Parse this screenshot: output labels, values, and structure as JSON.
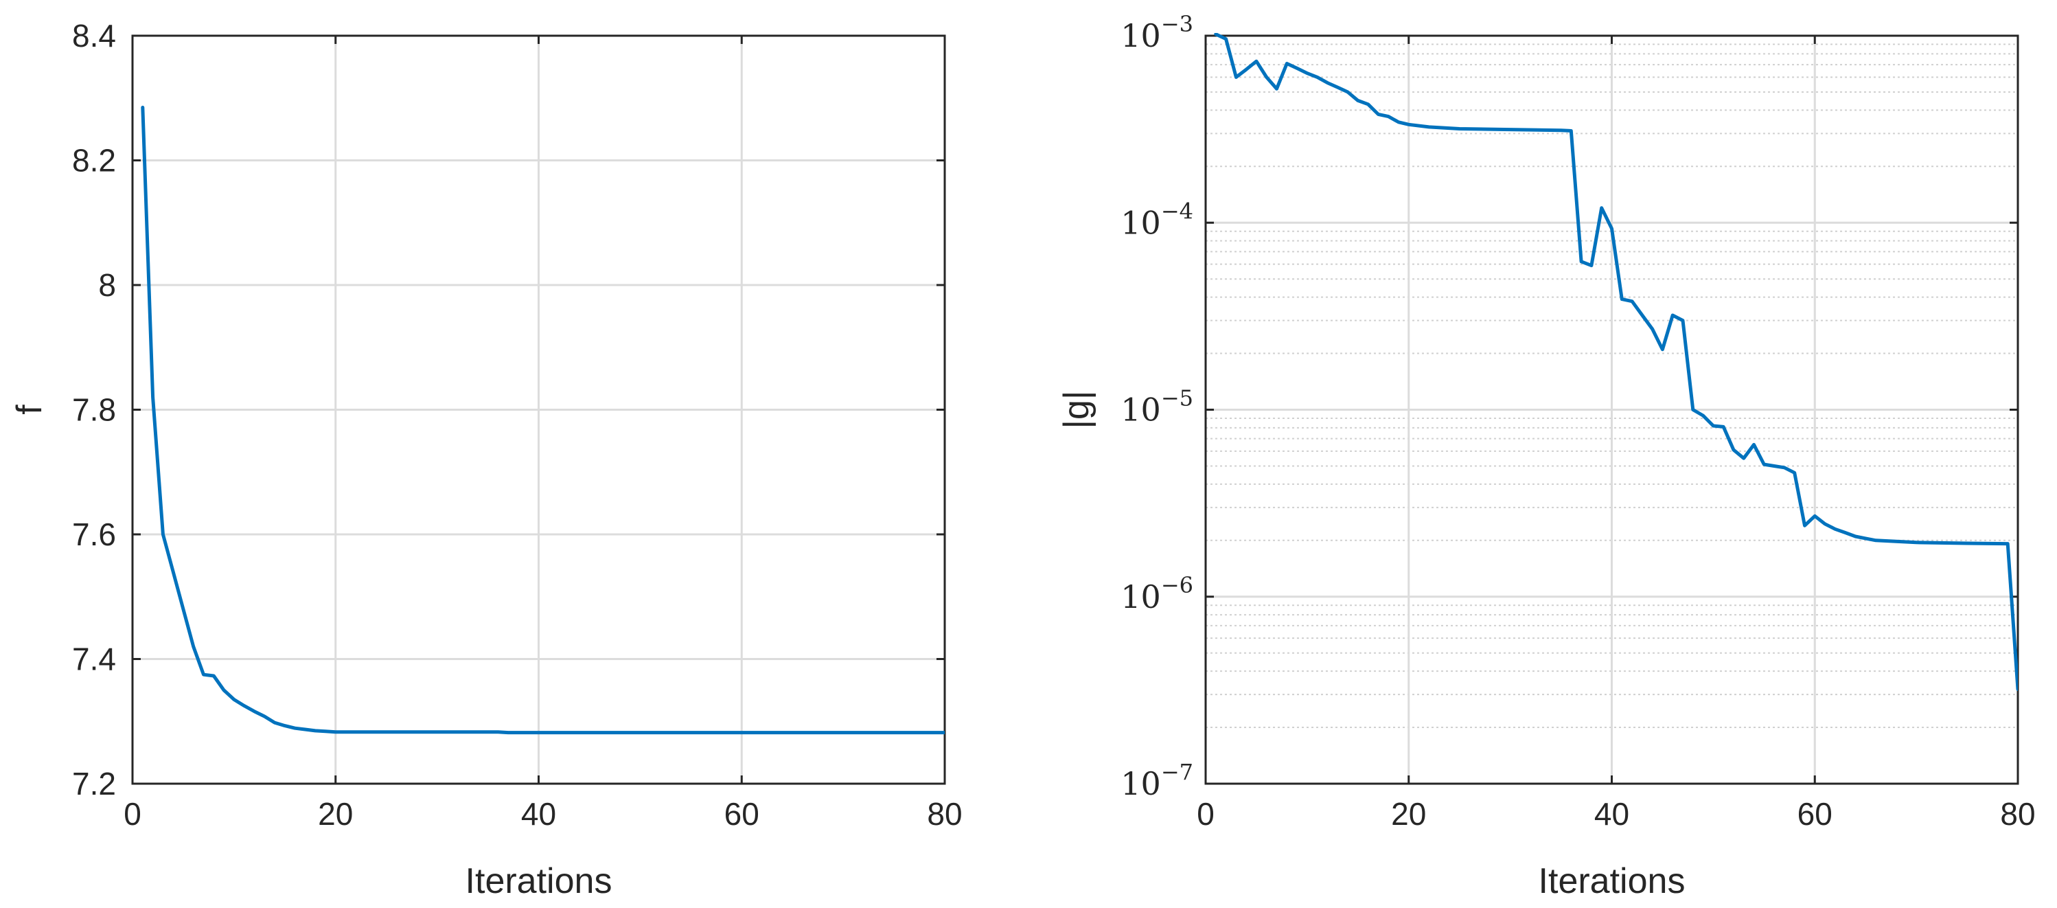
{
  "chart_data": [
    {
      "type": "line",
      "xlabel": "Iterations",
      "ylabel": "f",
      "xlim": [
        0,
        80
      ],
      "ylim": [
        7.2,
        8.4
      ],
      "xticks": [
        0,
        20,
        40,
        60,
        80
      ],
      "xtick_labels": [
        "0",
        "20",
        "40",
        "60",
        "80"
      ],
      "yticks": [
        7.2,
        7.4,
        7.6,
        7.8,
        8.0,
        8.2,
        8.4
      ],
      "ytick_labels": [
        "7.2",
        "7.4",
        "7.6",
        "7.8",
        "8",
        "8.2",
        "8.4"
      ],
      "grid": true,
      "yscale": "linear",
      "color": "#0072bd",
      "series": [
        {
          "x": [
            1,
            2,
            3,
            4,
            5,
            6,
            7,
            8,
            9,
            10,
            11,
            12,
            13,
            14,
            15,
            16,
            17,
            18,
            19,
            20,
            25,
            30,
            35,
            36,
            37,
            40,
            45,
            50,
            60,
            70,
            80
          ],
          "y": [
            8.285,
            7.82,
            7.6,
            7.54,
            7.48,
            7.42,
            7.375,
            7.373,
            7.35,
            7.335,
            7.325,
            7.316,
            7.308,
            7.298,
            7.293,
            7.289,
            7.287,
            7.285,
            7.284,
            7.283,
            7.283,
            7.283,
            7.283,
            7.283,
            7.282,
            7.282,
            7.282,
            7.282,
            7.282,
            7.282,
            7.282
          ]
        }
      ]
    },
    {
      "type": "line",
      "xlabel": "Iterations",
      "ylabel": "|g|",
      "xlim": [
        0,
        80
      ],
      "ylim": [
        1e-07,
        0.001
      ],
      "xticks": [
        0,
        20,
        40,
        60,
        80
      ],
      "xtick_labels": [
        "0",
        "20",
        "40",
        "60",
        "80"
      ],
      "yticks": [
        {
          "value": 1e-07,
          "base": "10",
          "exp": "−7"
        },
        {
          "value": 1e-06,
          "base": "10",
          "exp": "−6"
        },
        {
          "value": 1e-05,
          "base": "10",
          "exp": "−5"
        },
        {
          "value": 0.0001,
          "base": "10",
          "exp": "−4"
        },
        {
          "value": 0.001,
          "base": "10",
          "exp": "−3"
        }
      ],
      "grid": true,
      "minor_grid": true,
      "yscale": "log",
      "color": "#0072bd",
      "series": [
        {
          "x": [
            1,
            2,
            3,
            4,
            5,
            6,
            7,
            8,
            9,
            10,
            11,
            12,
            13,
            14,
            15,
            16,
            17,
            18,
            19,
            20,
            22,
            25,
            30,
            35,
            36,
            37,
            38,
            39,
            40,
            41,
            42,
            43,
            44,
            45,
            46,
            47,
            48,
            49,
            50,
            51,
            52,
            53,
            54,
            55,
            56,
            57,
            58,
            59,
            60,
            61,
            62,
            63,
            64,
            65,
            66,
            70,
            75,
            79,
            80
          ],
          "y": [
            0.00102,
            0.00096,
            0.0006,
            0.00066,
            0.00073,
            0.0006,
            0.00052,
            0.00071,
            0.00067,
            0.00063,
            0.0006,
            0.00056,
            0.00053,
            0.0005,
            0.00045,
            0.00043,
            0.00038,
            0.00037,
            0.000345,
            0.000335,
            0.000325,
            0.000318,
            0.000315,
            0.000312,
            0.00031,
            6.2e-05,
            5.9e-05,
            0.00012,
            9.3e-05,
            3.9e-05,
            3.8e-05,
            3.2e-05,
            2.7e-05,
            2.1e-05,
            3.2e-05,
            3e-05,
            1e-05,
            9.3e-06,
            8.2e-06,
            8.1e-06,
            6.1e-06,
            5.5e-06,
            6.5e-06,
            5.1e-06,
            5e-06,
            4.9e-06,
            4.6e-06,
            2.4e-06,
            2.7e-06,
            2.45e-06,
            2.3e-06,
            2.2e-06,
            2.1e-06,
            2.05e-06,
            2e-06,
            1.95e-06,
            1.93e-06,
            1.92e-06,
            3.2e-07
          ]
        }
      ]
    }
  ]
}
